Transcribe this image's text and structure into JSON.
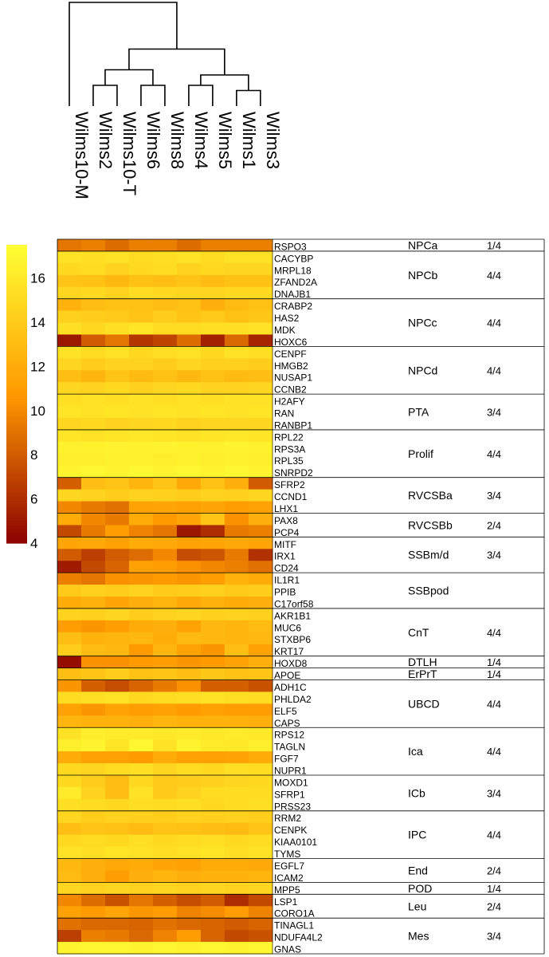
{
  "chart_data": {
    "type": "heatmap",
    "title": "",
    "colorbar": {
      "min": 4,
      "max": 17.5,
      "ticks": [
        4,
        6,
        8,
        10,
        12,
        14,
        16
      ],
      "low_color": "#8b0000",
      "mid_color": "#ff9900",
      "high_color": "#ffff33"
    },
    "samples": [
      "Wilms10-M",
      "Wilms2",
      "Wilms10-T",
      "Wilms6",
      "Wilms8",
      "Wilms4",
      "Wilms5",
      "Wilms1",
      "Wilms3"
    ],
    "dendrogram": [
      {
        "left": "Wilms2",
        "right": "Wilms10-T",
        "height": 0.2
      },
      {
        "left": "Wilms6",
        "right": "Wilms8",
        "height": 0.2
      },
      {
        "left": "Wilms1",
        "right": "Wilms3",
        "height": 0.15
      },
      {
        "left": "Wilms4",
        "right": "Wilms5",
        "height": 0.2
      },
      {
        "left": "c1",
        "right": "c2",
        "height": 0.35
      },
      {
        "left": "Wilms4/5",
        "right": "Wilms1/3",
        "height": 0.3
      },
      {
        "left": "c12",
        "right": "c45",
        "height": 0.55
      },
      {
        "left": "Wilms10-M",
        "right": "rest",
        "height": 1.0
      }
    ],
    "groups": [
      {
        "name": "NPCa",
        "ratio": "1/4",
        "genes": [
          {
            "name": "RSPO3",
            "values": [
              9.2,
              9.6,
              8.8,
              9.6,
              9.6,
              8.8,
              9.6,
              9.6,
              9.6
            ]
          }
        ]
      },
      {
        "name": "NPCb",
        "ratio": "4/4",
        "genes": [
          {
            "name": "CACYBP",
            "values": [
              15.6,
              15.4,
              15.6,
              15.2,
              15.4,
              15.6,
              15.2,
              15.6,
              15.6
            ]
          },
          {
            "name": "MRPL18",
            "values": [
              15.0,
              15.2,
              14.6,
              15.0,
              15.2,
              14.6,
              15.0,
              14.8,
              14.8
            ]
          },
          {
            "name": "ZFAND2A",
            "values": [
              13.6,
              13.4,
              12.8,
              13.4,
              13.2,
              13.6,
              13.0,
              13.4,
              13.4
            ]
          },
          {
            "name": "DNAJB1",
            "values": [
              14.8,
              15.0,
              14.6,
              15.2,
              15.0,
              14.8,
              14.8,
              15.0,
              15.0
            ]
          }
        ]
      },
      {
        "name": "NPCc",
        "ratio": "4/4",
        "genes": [
          {
            "name": "CRABP2",
            "values": [
              12.4,
              13.2,
              13.4,
              13.4,
              13.2,
              13.4,
              12.2,
              13.0,
              13.4
            ]
          },
          {
            "name": "HAS2",
            "values": [
              14.4,
              14.2,
              14.0,
              13.6,
              14.2,
              13.6,
              14.0,
              13.4,
              13.8
            ]
          },
          {
            "name": "MDK",
            "values": [
              15.4,
              15.0,
              15.4,
              15.8,
              15.2,
              15.2,
              15.4,
              15.4,
              15.6
            ]
          },
          {
            "name": "HOXC6",
            "values": [
              5.0,
              8.0,
              9.2,
              6.4,
              7.0,
              8.8,
              5.4,
              8.6,
              5.6
            ]
          }
        ]
      },
      {
        "name": "NPCd",
        "ratio": "4/4",
        "genes": [
          {
            "name": "CENPF",
            "values": [
              15.6,
              15.2,
              15.6,
              15.0,
              15.4,
              15.6,
              15.0,
              15.6,
              15.4
            ]
          },
          {
            "name": "HMGB2",
            "values": [
              14.8,
              14.2,
              14.6,
              14.6,
              14.2,
              14.8,
              14.4,
              14.4,
              14.2
            ]
          },
          {
            "name": "NUSAP1",
            "values": [
              13.2,
              12.6,
              13.6,
              13.0,
              13.4,
              12.8,
              13.4,
              13.0,
              13.2
            ]
          },
          {
            "name": "CCNB2",
            "values": [
              14.8,
              14.6,
              15.0,
              14.4,
              14.8,
              15.0,
              14.6,
              14.6,
              14.8
            ]
          }
        ]
      },
      {
        "name": "PTA",
        "ratio": "3/4",
        "genes": [
          {
            "name": "H2AFY",
            "values": [
              15.4,
              15.6,
              15.4,
              15.6,
              15.4,
              15.6,
              15.4,
              15.6,
              15.6
            ]
          },
          {
            "name": "RAN",
            "values": [
              15.8,
              15.6,
              15.8,
              15.6,
              15.8,
              15.6,
              15.8,
              15.6,
              15.8
            ]
          },
          {
            "name": "RANBP1",
            "values": [
              14.8,
              15.0,
              14.6,
              14.8,
              15.0,
              14.6,
              14.8,
              14.8,
              14.8
            ]
          }
        ]
      },
      {
        "name": "Prolif",
        "ratio": "4/4",
        "genes": [
          {
            "name": "RPL22",
            "values": [
              15.8,
              15.6,
              15.8,
              16.0,
              15.8,
              15.6,
              15.8,
              16.0,
              15.8
            ]
          },
          {
            "name": "RPS3A",
            "values": [
              16.6,
              16.6,
              16.8,
              16.6,
              16.8,
              16.6,
              16.6,
              16.8,
              16.6
            ]
          },
          {
            "name": "RPL35",
            "values": [
              16.4,
              16.4,
              16.6,
              16.6,
              16.4,
              16.6,
              16.4,
              16.6,
              16.4
            ]
          },
          {
            "name": "SNRPD2",
            "values": [
              16.8,
              17.0,
              16.8,
              17.0,
              16.8,
              17.0,
              16.8,
              17.0,
              16.8
            ]
          }
        ]
      },
      {
        "name": "RVCSBa",
        "ratio": "3/4",
        "genes": [
          {
            "name": "SFRP2",
            "values": [
              8.2,
              13.2,
              13.6,
              12.6,
              13.6,
              11.8,
              13.4,
              12.2,
              8.0
            ]
          },
          {
            "name": "CCND1",
            "values": [
              14.8,
              14.6,
              14.2,
              14.6,
              14.4,
              14.2,
              14.6,
              14.4,
              14.8
            ]
          },
          {
            "name": "LHX1",
            "values": [
              10.0,
              9.4,
              9.0,
              11.4,
              11.6,
              11.2,
              11.6,
              11.0,
              11.4
            ]
          }
        ]
      },
      {
        "name": "RVCSBb",
        "ratio": "2/4",
        "genes": [
          {
            "name": "PAX8",
            "values": [
              12.0,
              10.0,
              9.4,
              12.0,
              10.8,
              11.6,
              13.6,
              10.4,
              12.2
            ]
          },
          {
            "name": "PCP4",
            "values": [
              7.2,
              9.4,
              11.0,
              9.8,
              9.2,
              5.0,
              6.0,
              9.4,
              9.6
            ]
          }
        ]
      },
      {
        "name": "SSBm/d",
        "ratio": "3/4",
        "genes": [
          {
            "name": "MITF",
            "values": [
              11.6,
              11.8,
              11.2,
              12.0,
              11.8,
              11.4,
              11.6,
              11.8,
              11.6
            ]
          },
          {
            "name": "IRX1",
            "values": [
              8.0,
              6.8,
              8.0,
              8.8,
              10.0,
              7.4,
              7.8,
              9.4,
              6.2
            ]
          },
          {
            "name": "CD24",
            "values": [
              5.2,
              7.2,
              8.4,
              11.2,
              11.0,
              10.4,
              10.0,
              9.6,
              9.0
            ]
          }
        ]
      },
      {
        "name": "SSBpod",
        "ratio": "",
        "genes": [
          {
            "name": "IL1R1",
            "values": [
              9.6,
              9.2,
              10.4,
              10.6,
              10.8,
              10.6,
              11.0,
              12.4,
              12.0
            ]
          },
          {
            "name": "PPIB",
            "values": [
              14.0,
              14.4,
              14.2,
              14.6,
              14.0,
              14.2,
              14.4,
              14.0,
              14.2
            ]
          },
          {
            "name": "C17orf58",
            "values": [
              12.0,
              12.4,
              11.6,
              12.2,
              12.6,
              11.8,
              12.4,
              12.0,
              12.2
            ]
          }
        ]
      },
      {
        "name": "CnT",
        "ratio": "4/4",
        "genes": [
          {
            "name": "AKR1B1",
            "values": [
              14.6,
              14.4,
              14.8,
              14.2,
              14.6,
              14.8,
              14.4,
              14.6,
              14.4
            ]
          },
          {
            "name": "MUC6",
            "values": [
              11.0,
              10.6,
              11.0,
              12.0,
              12.2,
              11.4,
              12.8,
              12.6,
              13.0
            ]
          },
          {
            "name": "STXBP6",
            "values": [
              13.2,
              12.4,
              12.6,
              12.8,
              12.0,
              13.0,
              12.8,
              12.6,
              12.8
            ]
          },
          {
            "name": "KRT17",
            "values": [
              14.2,
              13.0,
              12.8,
              10.8,
              12.6,
              11.4,
              10.6,
              13.2,
              11.2
            ]
          }
        ]
      },
      {
        "name": "DTLH",
        "ratio": "1/4",
        "genes": [
          {
            "name": "HOXD8",
            "values": [
              4.6,
              10.4,
              10.4,
              10.8,
              11.0,
              10.6,
              10.8,
              11.4,
              12.2
            ]
          }
        ]
      },
      {
        "name": "ErPrT",
        "ratio": "1/4",
        "genes": [
          {
            "name": "APOE",
            "values": [
              13.2,
              13.6,
              14.2,
              13.4,
              13.6,
              13.2,
              13.8,
              13.4,
              13.6
            ]
          }
        ]
      },
      {
        "name": "UBCD",
        "ratio": "4/4",
        "genes": [
          {
            "name": "ADH1C",
            "values": [
              10.6,
              8.2,
              7.4,
              8.4,
              9.4,
              10.4,
              8.2,
              8.2,
              7.6
            ]
          },
          {
            "name": "PHLDA2",
            "values": [
              15.2,
              15.4,
              15.6,
              15.0,
              15.2,
              15.4,
              15.6,
              15.4,
              15.2
            ]
          },
          {
            "name": "ELF5",
            "values": [
              11.2,
              10.6,
              11.4,
              11.0,
              11.2,
              10.8,
              11.2,
              11.0,
              11.0
            ]
          },
          {
            "name": "CAPS",
            "values": [
              12.6,
              12.4,
              12.4,
              12.2,
              12.6,
              12.4,
              12.4,
              12.4,
              12.2
            ]
          }
        ]
      },
      {
        "name": "Ica",
        "ratio": "4/4",
        "genes": [
          {
            "name": "RPS12",
            "values": [
              15.6,
              16.4,
              16.2,
              16.2,
              16.0,
              16.2,
              16.0,
              16.2,
              16.0
            ]
          },
          {
            "name": "TAGLN",
            "values": [
              16.4,
              16.8,
              15.8,
              17.0,
              15.6,
              16.8,
              16.2,
              16.0,
              16.4
            ]
          },
          {
            "name": "FGF7",
            "values": [
              12.0,
              11.2,
              11.2,
              10.8,
              12.0,
              11.2,
              11.2,
              11.4,
              12.0
            ]
          },
          {
            "name": "NUPR1",
            "values": [
              15.0,
              14.8,
              15.2,
              15.4,
              14.8,
              15.2,
              15.0,
              15.4,
              15.2
            ]
          }
        ]
      },
      {
        "name": "ICb",
        "ratio": "3/4",
        "genes": [
          {
            "name": "MOXD1",
            "values": [
              15.0,
              14.2,
              13.2,
              15.0,
              14.0,
              14.2,
              14.4,
              14.8,
              15.0
            ]
          },
          {
            "name": "SFRP1",
            "values": [
              16.2,
              14.6,
              13.2,
              15.6,
              14.0,
              14.6,
              15.2,
              15.2,
              15.2
            ]
          },
          {
            "name": "PRSS23",
            "values": [
              15.4,
              15.2,
              15.0,
              15.4,
              15.2,
              15.4,
              15.0,
              15.2,
              15.4
            ]
          }
        ]
      },
      {
        "name": "IPC",
        "ratio": "4/4",
        "genes": [
          {
            "name": "RRM2",
            "values": [
              14.8,
              14.2,
              14.6,
              14.4,
              14.2,
              14.6,
              14.4,
              14.6,
              14.2
            ]
          },
          {
            "name": "CENPK",
            "values": [
              13.2,
              13.6,
              13.4,
              13.0,
              13.6,
              13.4,
              13.2,
              13.0,
              13.6
            ]
          },
          {
            "name": "KIAA0101",
            "values": [
              15.0,
              15.2,
              15.0,
              15.4,
              15.0,
              15.2,
              15.4,
              15.0,
              15.2
            ]
          },
          {
            "name": "TYMS",
            "values": [
              15.6,
              15.4,
              15.8,
              15.6,
              15.4,
              15.6,
              15.8,
              15.4,
              15.6
            ]
          }
        ]
      },
      {
        "name": "End",
        "ratio": "2/4",
        "genes": [
          {
            "name": "EGFL7",
            "values": [
              12.8,
              12.2,
              11.8,
              12.0,
              11.6,
              11.2,
              12.0,
              12.0,
              11.8
            ]
          },
          {
            "name": "ICAM2",
            "values": [
              13.0,
              12.2,
              11.0,
              12.2,
              12.6,
              12.2,
              12.4,
              12.4,
              12.6
            ]
          }
        ]
      },
      {
        "name": "POD",
        "ratio": "1/4",
        "genes": [
          {
            "name": "MPP5",
            "values": [
              14.8,
              14.6,
              14.8,
              14.6,
              14.8,
              14.6,
              14.8,
              14.6,
              14.8
            ]
          }
        ]
      },
      {
        "name": "Leu",
        "ratio": "2/4",
        "genes": [
          {
            "name": "LSP1",
            "values": [
              10.0,
              8.8,
              7.6,
              9.2,
              8.2,
              7.4,
              8.0,
              6.0,
              7.2
            ]
          },
          {
            "name": "CORO1A",
            "values": [
              11.2,
              10.8,
              11.6,
              10.6,
              11.0,
              9.8,
              10.2,
              11.0,
              9.8
            ]
          }
        ]
      },
      {
        "name": "Mes",
        "ratio": "3/4",
        "genes": [
          {
            "name": "TINAGL1",
            "values": [
              9.0,
              8.6,
              8.6,
              8.4,
              9.0,
              8.6,
              8.4,
              8.0,
              8.4
            ]
          },
          {
            "name": "NDUFA4L2",
            "values": [
              6.8,
              9.6,
              9.4,
              8.6,
              9.8,
              11.0,
              8.4,
              7.2,
              7.6
            ]
          },
          {
            "name": "GNAS",
            "values": [
              16.8,
              17.0,
              17.0,
              16.8,
              17.0,
              16.8,
              17.0,
              16.8,
              17.0
            ]
          }
        ]
      }
    ]
  }
}
